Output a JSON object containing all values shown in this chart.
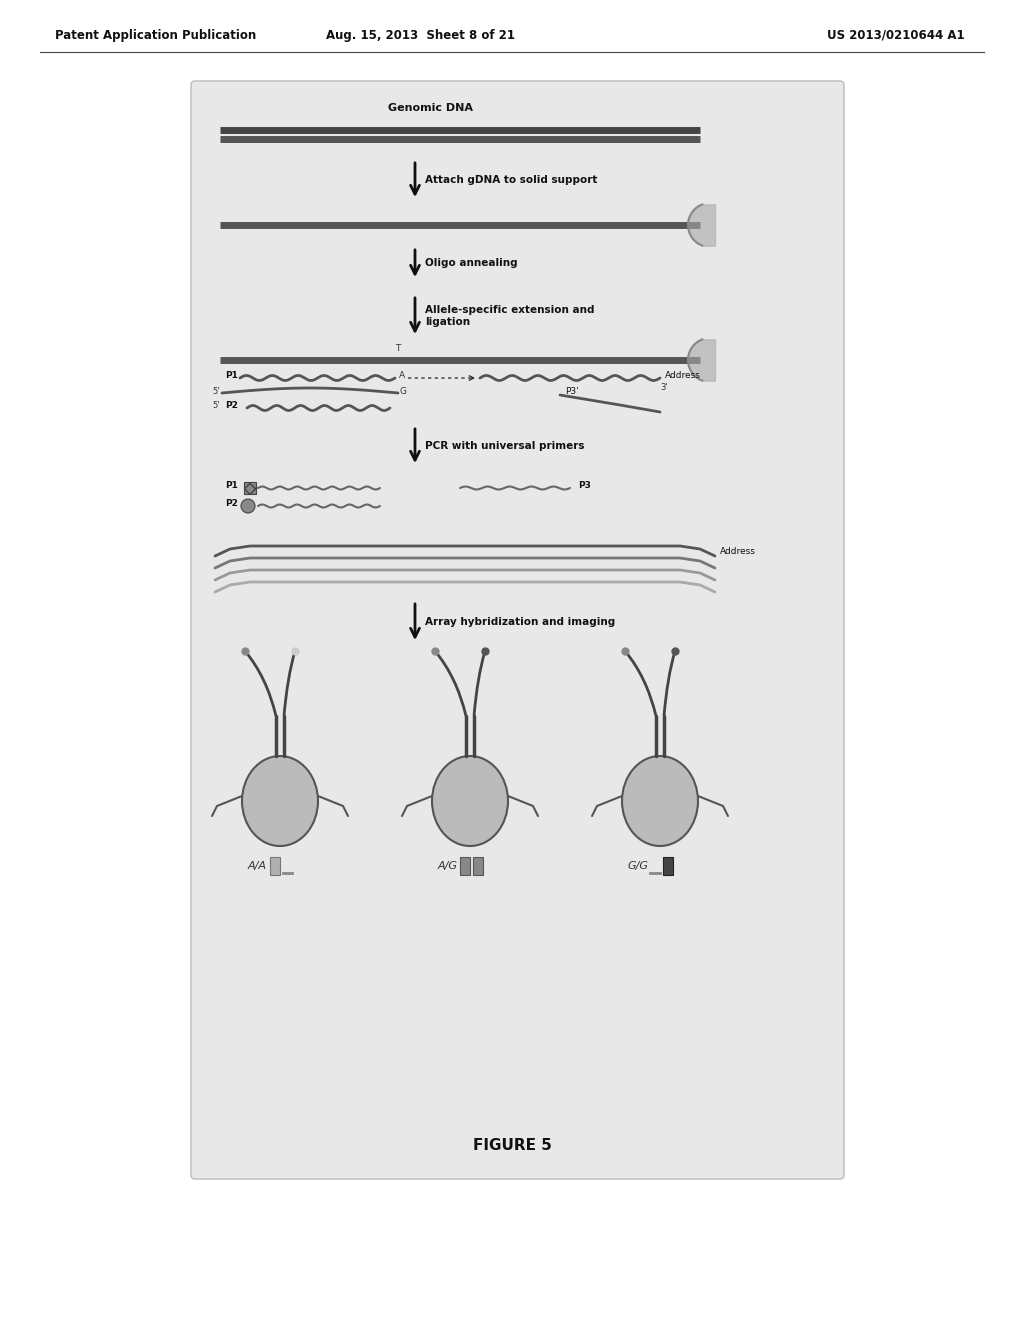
{
  "header_left": "Patent Application Publication",
  "header_center": "Aug. 15, 2013  Sheet 8 of 21",
  "header_right": "US 2013/0210644 A1",
  "figure_label": "FIGURE 5",
  "bg_color": "#ffffff",
  "diagram_bg": "#e8e8e8",
  "text_color": "#111111"
}
